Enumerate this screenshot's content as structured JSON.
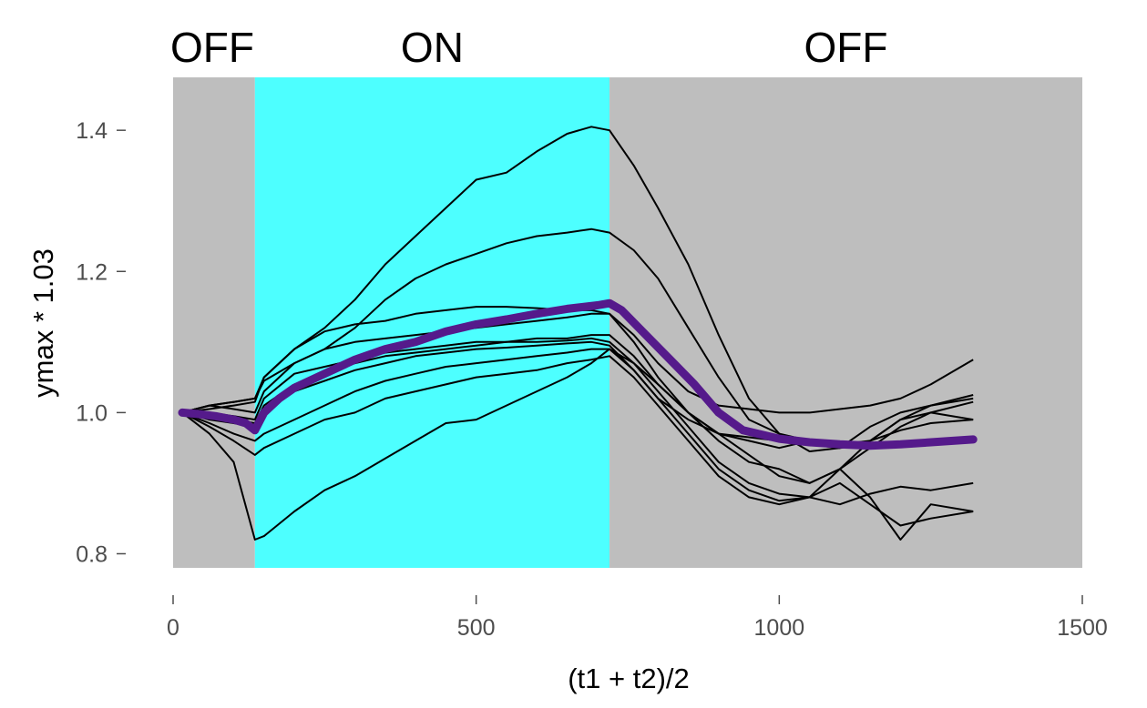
{
  "chart_data": {
    "type": "line",
    "xlabel": "(t1 + t2)/2",
    "ylabel": "ymax * 1.03",
    "xlim": [
      0,
      1500
    ],
    "ylim": [
      0.78,
      1.475
    ],
    "x_ticks": [
      0,
      500,
      1000,
      1500
    ],
    "y_ticks": [
      0.8,
      1.0,
      1.2,
      1.4
    ],
    "x_tick_labels": [
      "0",
      "500",
      "1000",
      "1500"
    ],
    "y_tick_labels": [
      "0.8",
      "1.0",
      "1.2",
      "1.4"
    ],
    "grid": false,
    "colors": {
      "off_background": "#bebebe",
      "on_background": "#4dffff",
      "trace": "#000000",
      "mean": "#551a8b"
    },
    "phases": [
      {
        "label": "OFF",
        "x_start": 0,
        "x_end": 135
      },
      {
        "label": "ON",
        "x_start": 135,
        "x_end": 720
      },
      {
        "label": "OFF",
        "x_start": 720,
        "x_end": 1500
      }
    ],
    "series": [
      {
        "x": [
          15,
          60,
          100,
          135,
          150,
          200,
          250,
          300,
          350,
          400,
          450,
          500,
          550,
          600,
          650,
          690,
          720,
          760,
          800,
          850,
          900,
          950,
          1000,
          1050,
          1100,
          1150,
          1200,
          1250,
          1320
        ],
        "values": [
          1.0,
          1.005,
          1.01,
          1.015,
          1.05,
          1.09,
          1.12,
          1.16,
          1.21,
          1.25,
          1.29,
          1.33,
          1.34,
          1.37,
          1.395,
          1.405,
          1.4,
          1.35,
          1.29,
          1.21,
          1.11,
          1.02,
          0.97,
          0.945,
          0.95,
          0.98,
          1.0,
          1.01,
          1.02
        ]
      },
      {
        "x": [
          15,
          60,
          100,
          135,
          150,
          200,
          250,
          300,
          350,
          400,
          450,
          500,
          550,
          600,
          650,
          690,
          720,
          760,
          800,
          850,
          900,
          950,
          1000,
          1050,
          1100,
          1150,
          1200,
          1250,
          1320
        ],
        "values": [
          1.0,
          1.01,
          1.015,
          1.02,
          1.045,
          1.07,
          1.09,
          1.12,
          1.16,
          1.19,
          1.21,
          1.225,
          1.24,
          1.25,
          1.255,
          1.26,
          1.255,
          1.23,
          1.19,
          1.12,
          1.05,
          0.99,
          0.97,
          0.96,
          0.95,
          0.96,
          0.99,
          1.0,
          0.99
        ]
      },
      {
        "x": [
          15,
          60,
          100,
          135,
          150,
          200,
          250,
          300,
          350,
          400,
          450,
          500,
          550,
          600,
          650,
          690,
          720,
          760,
          800,
          850,
          900,
          950,
          1000,
          1050,
          1100,
          1150,
          1200,
          1250,
          1320
        ],
        "values": [
          1.0,
          1.01,
          1.015,
          1.02,
          1.05,
          1.09,
          1.115,
          1.125,
          1.13,
          1.14,
          1.145,
          1.15,
          1.15,
          1.148,
          1.145,
          1.145,
          1.14,
          1.1,
          1.05,
          1.0,
          0.97,
          0.965,
          0.96,
          0.955,
          0.95,
          0.955,
          0.955,
          0.955,
          0.96
        ]
      },
      {
        "x": [
          15,
          60,
          100,
          135,
          150,
          200,
          250,
          300,
          350,
          400,
          450,
          500,
          550,
          600,
          650,
          690,
          720,
          760,
          800,
          850,
          900,
          950,
          1000,
          1050,
          1100,
          1150,
          1200,
          1250,
          1320
        ],
        "values": [
          1.0,
          1.01,
          1.005,
          1.0,
          1.03,
          1.07,
          1.09,
          1.1,
          1.105,
          1.11,
          1.115,
          1.12,
          1.125,
          1.13,
          1.135,
          1.14,
          1.14,
          1.11,
          1.07,
          1.03,
          1.01,
          1.005,
          1.0,
          1.0,
          1.005,
          1.01,
          1.02,
          1.04,
          1.075
        ]
      },
      {
        "x": [
          15,
          60,
          100,
          135,
          150,
          200,
          250,
          300,
          350,
          400,
          450,
          500,
          550,
          600,
          650,
          690,
          720,
          760,
          800,
          850,
          900,
          950,
          1000,
          1050,
          1100,
          1150,
          1200,
          1250,
          1320
        ],
        "values": [
          1.0,
          1.0,
          0.995,
          0.99,
          1.02,
          1.055,
          1.065,
          1.075,
          1.085,
          1.09,
          1.095,
          1.1,
          1.1,
          1.105,
          1.105,
          1.11,
          1.11,
          1.08,
          1.04,
          1.0,
          0.97,
          0.94,
          0.91,
          0.9,
          0.92,
          0.96,
          0.99,
          1.01,
          1.025
        ]
      },
      {
        "x": [
          15,
          60,
          100,
          135,
          150,
          200,
          250,
          300,
          350,
          400,
          450,
          500,
          550,
          600,
          650,
          690,
          720,
          760,
          800,
          850,
          900,
          950,
          1000,
          1050,
          1100,
          1150,
          1200,
          1250,
          1320
        ],
        "values": [
          1.0,
          0.995,
          0.99,
          0.985,
          1.01,
          1.04,
          1.055,
          1.07,
          1.08,
          1.085,
          1.09,
          1.095,
          1.1,
          1.1,
          1.102,
          1.105,
          1.1,
          1.07,
          1.03,
          0.98,
          0.93,
          0.9,
          0.885,
          0.88,
          0.92,
          0.95,
          0.98,
          1.0,
          1.015
        ]
      },
      {
        "x": [
          15,
          60,
          100,
          135,
          150,
          200,
          250,
          300,
          350,
          400,
          450,
          500,
          550,
          600,
          650,
          690,
          720,
          760,
          800,
          850,
          900,
          950,
          1000,
          1050,
          1100,
          1150,
          1200,
          1250,
          1320
        ],
        "values": [
          1.0,
          0.99,
          0.985,
          0.98,
          1.0,
          1.03,
          1.045,
          1.06,
          1.07,
          1.08,
          1.085,
          1.09,
          1.092,
          1.095,
          1.098,
          1.1,
          1.095,
          1.06,
          1.02,
          0.97,
          0.92,
          0.89,
          0.875,
          0.88,
          0.87,
          0.885,
          0.895,
          0.89,
          0.9
        ]
      },
      {
        "x": [
          15,
          60,
          100,
          135,
          150,
          200,
          250,
          300,
          350,
          400,
          450,
          500,
          550,
          600,
          650,
          690,
          720,
          760,
          800,
          850,
          900,
          950,
          1000,
          1050,
          1100,
          1150,
          1200,
          1250,
          1320
        ],
        "values": [
          1.0,
          0.985,
          0.97,
          0.96,
          0.97,
          0.99,
          1.01,
          1.03,
          1.045,
          1.055,
          1.065,
          1.07,
          1.075,
          1.08,
          1.085,
          1.09,
          1.09,
          1.06,
          1.02,
          0.99,
          0.97,
          0.96,
          0.95,
          0.96,
          0.955,
          0.96,
          0.975,
          0.985,
          0.99
        ]
      },
      {
        "x": [
          15,
          60,
          100,
          135,
          150,
          200,
          250,
          300,
          350,
          400,
          450,
          500,
          550,
          600,
          650,
          690,
          720,
          760,
          800,
          850,
          900,
          950,
          1000,
          1050,
          1100,
          1150,
          1200,
          1250,
          1320
        ],
        "values": [
          1.0,
          0.98,
          0.96,
          0.94,
          0.95,
          0.97,
          0.99,
          1.0,
          1.02,
          1.03,
          1.04,
          1.05,
          1.055,
          1.06,
          1.07,
          1.075,
          1.08,
          1.05,
          1.01,
          0.96,
          0.91,
          0.88,
          0.87,
          0.88,
          0.9,
          0.87,
          0.84,
          0.85,
          0.86
        ]
      },
      {
        "x": [
          15,
          60,
          100,
          135,
          150,
          200,
          250,
          300,
          350,
          400,
          450,
          500,
          550,
          600,
          650,
          690,
          720,
          760,
          800,
          850,
          900,
          950,
          1000,
          1050,
          1100,
          1150,
          1200,
          1250,
          1320
        ],
        "values": [
          1.0,
          0.97,
          0.93,
          0.82,
          0.825,
          0.86,
          0.89,
          0.91,
          0.935,
          0.96,
          0.985,
          0.99,
          1.01,
          1.03,
          1.05,
          1.07,
          1.09,
          1.07,
          1.04,
          1.0,
          0.96,
          0.93,
          0.92,
          0.9,
          0.92,
          0.88,
          0.82,
          0.87,
          0.86
        ]
      }
    ],
    "mean_series": {
      "x": [
        15,
        40,
        70,
        100,
        120,
        135,
        150,
        175,
        200,
        250,
        300,
        350,
        400,
        450,
        500,
        550,
        600,
        650,
        700,
        720,
        740,
        780,
        820,
        860,
        900,
        940,
        1000,
        1050,
        1100,
        1150,
        1200,
        1250,
        1320
      ],
      "values": [
        1.0,
        0.998,
        0.995,
        0.99,
        0.985,
        0.975,
        1.0,
        1.02,
        1.035,
        1.055,
        1.075,
        1.09,
        1.1,
        1.115,
        1.125,
        1.132,
        1.14,
        1.147,
        1.152,
        1.155,
        1.145,
        1.11,
        1.075,
        1.04,
        1.0,
        0.975,
        0.963,
        0.958,
        0.955,
        0.953,
        0.955,
        0.958,
        0.962
      ]
    }
  }
}
